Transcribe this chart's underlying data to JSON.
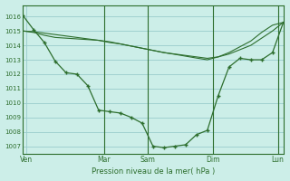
{
  "bg_color": "#cceee8",
  "grid_color": "#99cccc",
  "line_color": "#2d6e2d",
  "xlabel": "Pression niveau de la mer( hPa )",
  "ylim": [
    1006.5,
    1016.8
  ],
  "yticks": [
    1007,
    1008,
    1009,
    1010,
    1011,
    1012,
    1013,
    1014,
    1015,
    1016
  ],
  "xlim": [
    0,
    24
  ],
  "day_labels": [
    "Ven",
    "Mar",
    "Sam",
    "Dim",
    "Lun"
  ],
  "day_positions": [
    0.3,
    7.5,
    11.5,
    17.5,
    23.5
  ],
  "vline_positions": [
    7.5,
    11.5,
    17.5,
    23.5
  ],
  "line1_x": [
    0,
    1,
    2,
    3,
    4,
    5,
    6,
    7,
    8,
    9,
    10,
    11,
    12,
    13,
    14,
    15,
    16,
    17,
    18,
    19,
    20,
    21,
    22,
    23,
    24
  ],
  "line1_y": [
    1016.1,
    1015.1,
    1014.2,
    1012.9,
    1012.1,
    1012.0,
    1011.2,
    1009.5,
    1009.4,
    1009.3,
    1009.0,
    1008.6,
    1007.0,
    1006.9,
    1007.0,
    1007.1,
    1007.8,
    1008.1,
    1010.5,
    1012.5,
    1013.1,
    1013.0,
    1013.0,
    1013.5,
    1015.6
  ],
  "line2_x": [
    0,
    1,
    2,
    3,
    4,
    5,
    6,
    7,
    8,
    9,
    10,
    11,
    12,
    13,
    14,
    15,
    16,
    17,
    18,
    19,
    20,
    21,
    22,
    23,
    24
  ],
  "line2_y": [
    1015.0,
    1014.95,
    1014.85,
    1014.75,
    1014.65,
    1014.55,
    1014.45,
    1014.35,
    1014.2,
    1014.1,
    1013.95,
    1013.8,
    1013.65,
    1013.5,
    1013.4,
    1013.3,
    1013.2,
    1013.1,
    1013.2,
    1013.4,
    1013.7,
    1014.0,
    1014.5,
    1015.0,
    1015.6
  ],
  "line3_x": [
    0,
    1,
    2,
    3,
    4,
    5,
    6,
    7,
    8,
    9,
    10,
    11,
    12,
    13,
    14,
    15,
    16,
    17,
    18,
    19,
    20,
    21,
    22,
    23,
    24
  ],
  "line3_y": [
    1015.0,
    1014.9,
    1014.7,
    1014.55,
    1014.5,
    1014.45,
    1014.4,
    1014.35,
    1014.25,
    1014.1,
    1013.95,
    1013.8,
    1013.65,
    1013.5,
    1013.38,
    1013.25,
    1013.12,
    1013.0,
    1013.2,
    1013.5,
    1013.9,
    1014.3,
    1014.9,
    1015.4,
    1015.6
  ]
}
